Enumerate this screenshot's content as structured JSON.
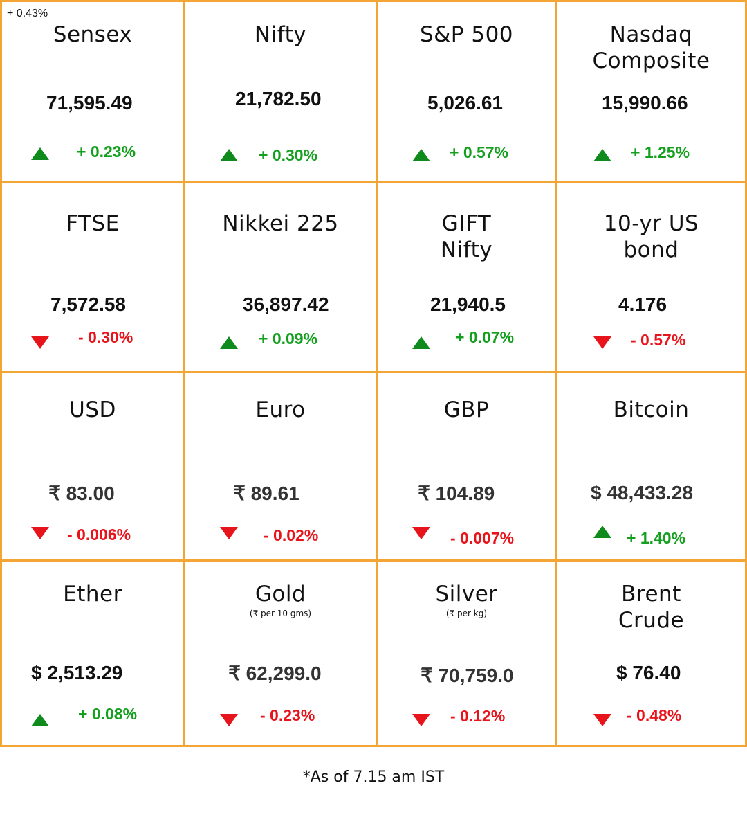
{
  "corner_note": "+ 0.43%",
  "colors": {
    "border": "#f4a535",
    "up": "#14a01e",
    "down": "#e8141b"
  },
  "cells": [
    {
      "name": "Sensex",
      "value": "71,595.49",
      "change": "+ 0.23%",
      "direction": "up"
    },
    {
      "name": "Nifty",
      "value": "21,782.50",
      "change": "+ 0.30%",
      "direction": "up"
    },
    {
      "name": "S&P 500",
      "value": "5,026.61",
      "change": "+ 0.57%",
      "direction": "up"
    },
    {
      "name": "Nasdaq\nComposite",
      "value": "15,990.66",
      "change": "+ 1.25%",
      "direction": "up"
    },
    {
      "name": "FTSE",
      "value": "7,572.58",
      "change": "- 0.30%",
      "direction": "down"
    },
    {
      "name": "Nikkei 225",
      "value": "36,897.42",
      "change": "+ 0.09%",
      "direction": "up"
    },
    {
      "name": "GIFT\nNifty",
      "value": "21,940.5",
      "change": "+ 0.07%",
      "direction": "up"
    },
    {
      "name": "10-yr US\nbond",
      "value": "4.176",
      "change": "- 0.57%",
      "direction": "down"
    },
    {
      "name": "USD",
      "value": "₹ 83.00",
      "change": "- 0.006%",
      "direction": "down"
    },
    {
      "name": "Euro",
      "value": "₹ 89.61",
      "change": "- 0.02%",
      "direction": "down"
    },
    {
      "name": "GBP",
      "value": "₹ 104.89",
      "change": "- 0.007%",
      "direction": "down"
    },
    {
      "name": "Bitcoin",
      "value": "$ 48,433.28",
      "change": "+ 1.40%",
      "direction": "up"
    },
    {
      "name": "Ether",
      "value": "$ 2,513.29",
      "change": "+ 0.08%",
      "direction": "up"
    },
    {
      "name": "Gold",
      "unit": "(₹ per 10 gms)",
      "value": "₹ 62,299.0",
      "change": "- 0.23%",
      "direction": "down"
    },
    {
      "name": "Silver",
      "unit": "(₹ per kg)",
      "value": "₹ 70,759.0",
      "change": "- 0.12%",
      "direction": "down"
    },
    {
      "name": "Brent\nCrude",
      "value": "$ 76.40",
      "change": "- 0.48%",
      "direction": "down"
    }
  ],
  "footnote": "*As of 7.15 am IST"
}
